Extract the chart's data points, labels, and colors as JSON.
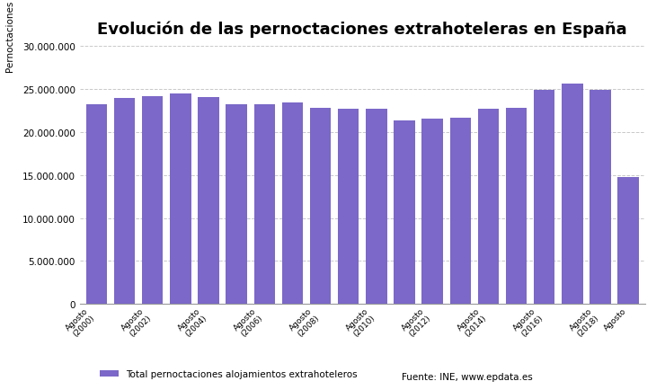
{
  "title": "Evolución de las pernoctaciones extrahoteleras en España",
  "ylabel": "Pernoctaciones",
  "bar_color": "#7B68C8",
  "categories": [
    "Agosto\n(2000)",
    "",
    "Agosto\n(2002)",
    "",
    "Agosto\n(2004)",
    "",
    "Agosto\n(2006)",
    "",
    "Agosto\n(2008)",
    "",
    "Agosto\n(2010)",
    "",
    "Agosto\n(2012)",
    "",
    "Agosto\n(2014)",
    "",
    "Agosto\n(2016)",
    "",
    "Agosto\n(2018)",
    "Agosto"
  ],
  "values": [
    23200000,
    24000000,
    24200000,
    24500000,
    24100000,
    23200000,
    23200000,
    23400000,
    22800000,
    22700000,
    22700000,
    21300000,
    21600000,
    21700000,
    22700000,
    22800000,
    24900000,
    25600000,
    24900000,
    14800000
  ],
  "ylim": [
    0,
    30000000
  ],
  "yticks": [
    0,
    5000000,
    10000000,
    15000000,
    20000000,
    25000000,
    30000000
  ],
  "legend_label": "Total pernoctaciones alojamientos extrahoteleros",
  "source_text": "Fuente: INE, www.epdata.es",
  "background_color": "#ffffff",
  "grid_color": "#bbbbbb"
}
